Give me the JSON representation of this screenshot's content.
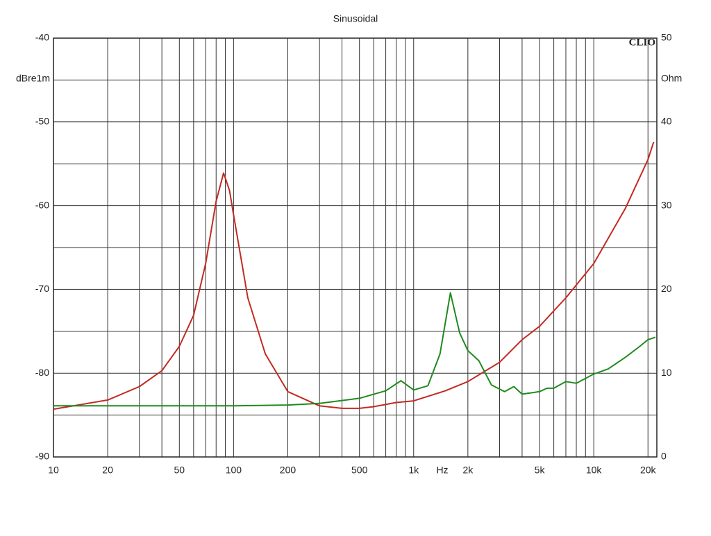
{
  "chart_data": {
    "type": "line",
    "title": "Sinusoidal",
    "brand": "CLIO",
    "x_label": "Hz",
    "y_label": "dBre1m",
    "y2_label": "Ohm",
    "x_scale": "log",
    "grid": true,
    "xlim": [
      10,
      22400
    ],
    "ylim": [
      -90,
      -40
    ],
    "y2lim": [
      0,
      50
    ],
    "xticks": [
      10,
      20,
      50,
      100,
      200,
      500,
      {
        "value": 1000,
        "label": "1k"
      },
      {
        "value": 2000,
        "label": "2k"
      },
      {
        "value": 5000,
        "label": "5k"
      },
      {
        "value": 10000,
        "label": "10k"
      },
      {
        "value": 20000,
        "label": "20k"
      }
    ],
    "xgrid": [
      10,
      20,
      30,
      40,
      50,
      60,
      70,
      80,
      90,
      100,
      200,
      300,
      400,
      500,
      600,
      700,
      800,
      900,
      1000,
      2000,
      3000,
      4000,
      5000,
      6000,
      7000,
      8000,
      9000,
      10000,
      20000
    ],
    "yticks": [
      -90,
      -80,
      -70,
      -60,
      -50,
      -40
    ],
    "ygrid": [
      -90,
      -85,
      -80,
      -75,
      -70,
      -65,
      -60,
      -55,
      -50,
      -45,
      -40
    ],
    "y2ticks": [
      0,
      10,
      20,
      30,
      40,
      50
    ],
    "series": [
      {
        "color": "#c22a22",
        "axis": "y2",
        "x": [
          10,
          20,
          30,
          40,
          50,
          60,
          70,
          80,
          88,
          95,
          100,
          120,
          150,
          200,
          300,
          400,
          500,
          600,
          800,
          1000,
          1500,
          2000,
          3000,
          4000,
          5000,
          7000,
          10000,
          15000,
          20000,
          21500
        ],
        "values": [
          5.7,
          6.8,
          8.4,
          10.3,
          13.2,
          16.9,
          23.1,
          30.5,
          33.9,
          31.8,
          28.9,
          19.0,
          12.3,
          7.8,
          6.1,
          5.8,
          5.8,
          6.0,
          6.5,
          6.7,
          7.9,
          9.0,
          11.3,
          14.0,
          15.6,
          19.0,
          23.1,
          29.7,
          35.5,
          37.6
        ]
      },
      {
        "color": "#1f8a1f",
        "axis": "y",
        "x": [
          10,
          100,
          200,
          300,
          500,
          700,
          850,
          1000,
          1200,
          1400,
          1600,
          1800,
          2000,
          2300,
          2700,
          3200,
          3600,
          4000,
          5000,
          5500,
          6000,
          7000,
          8000,
          10000,
          12000,
          15000,
          18000,
          20000,
          22000
        ],
        "values": [
          -83.9,
          -83.9,
          -83.8,
          -83.6,
          -83.0,
          -82.1,
          -80.9,
          -82.0,
          -81.5,
          -77.7,
          -70.4,
          -75.2,
          -77.3,
          -78.5,
          -81.4,
          -82.2,
          -81.6,
          -82.5,
          -82.2,
          -81.8,
          -81.8,
          -81.0,
          -81.2,
          -80.1,
          -79.5,
          -78.1,
          -76.8,
          -76.0,
          -75.7
        ]
      }
    ]
  }
}
